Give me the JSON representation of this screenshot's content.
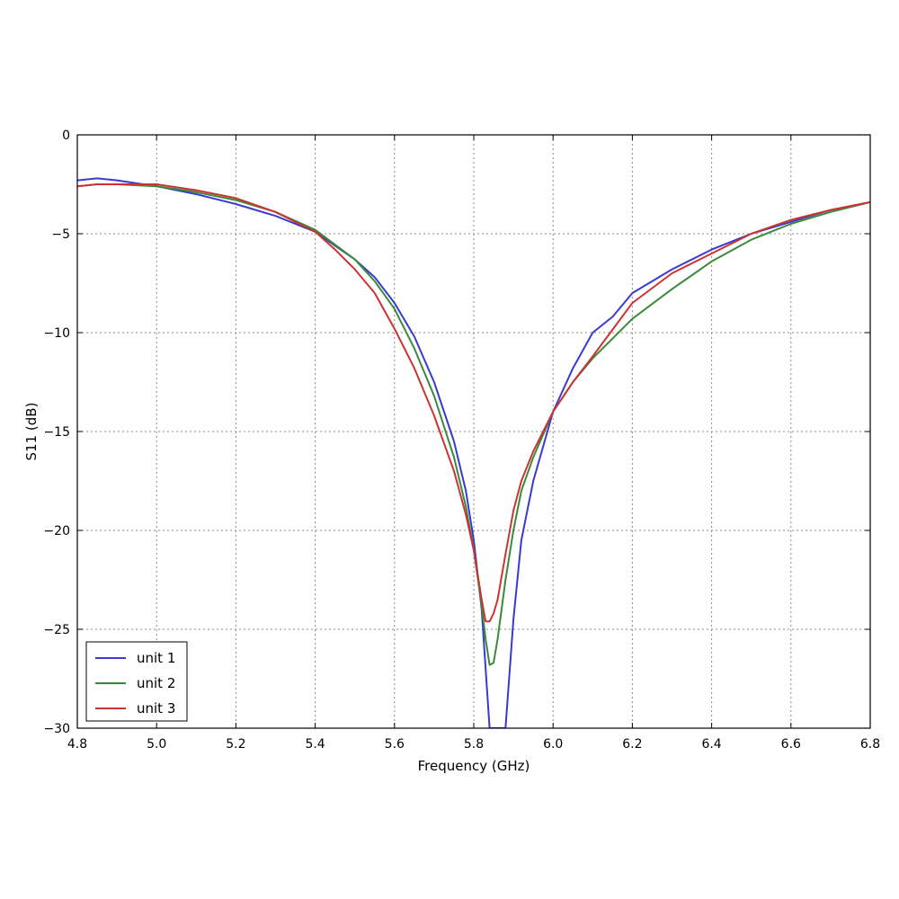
{
  "chart_data": {
    "type": "line",
    "title": "",
    "xlabel": "Frequency (GHz)",
    "ylabel": "S11 (dB)",
    "xlim": [
      4.8,
      6.8
    ],
    "ylim": [
      -30,
      0
    ],
    "xticks": [
      "4.8",
      "5.0",
      "5.2",
      "5.4",
      "5.6",
      "5.8",
      "6.0",
      "6.2",
      "6.4",
      "6.6",
      "6.8"
    ],
    "yticks": [
      "0",
      "−5",
      "−10",
      "−15",
      "−20",
      "−25",
      "−30"
    ],
    "grid": true,
    "legend_position": "lower-left",
    "series": [
      {
        "name": "unit 1",
        "color": "#3a3ad0",
        "x": [
          4.8,
          4.85,
          4.9,
          5.0,
          5.1,
          5.2,
          5.3,
          5.4,
          5.5,
          5.55,
          5.6,
          5.65,
          5.7,
          5.75,
          5.78,
          5.8,
          5.82,
          5.83,
          5.84,
          5.85,
          5.86,
          5.87,
          5.88,
          5.9,
          5.92,
          5.95,
          6.0,
          6.05,
          6.1,
          6.15,
          6.2,
          6.3,
          6.4,
          6.5,
          6.6,
          6.7,
          6.8
        ],
        "y": [
          -2.3,
          -2.2,
          -2.3,
          -2.6,
          -3.0,
          -3.5,
          -4.1,
          -4.9,
          -6.3,
          -7.2,
          -8.5,
          -10.2,
          -12.5,
          -15.5,
          -18.0,
          -20.5,
          -24.0,
          -27.0,
          -30.0,
          -30.0,
          -30.0,
          -30.0,
          -30.0,
          -24.5,
          -20.5,
          -17.5,
          -14.0,
          -11.8,
          -10.0,
          -9.2,
          -8.0,
          -6.8,
          -5.8,
          -5.0,
          -4.4,
          -3.8,
          -3.4
        ]
      },
      {
        "name": "unit 2",
        "color": "#3a8a3a",
        "x": [
          4.8,
          4.85,
          4.9,
          5.0,
          5.1,
          5.2,
          5.3,
          5.4,
          5.5,
          5.55,
          5.6,
          5.65,
          5.7,
          5.75,
          5.78,
          5.8,
          5.82,
          5.83,
          5.84,
          5.85,
          5.86,
          5.88,
          5.9,
          5.92,
          5.95,
          6.0,
          6.05,
          6.1,
          6.2,
          6.3,
          6.4,
          6.5,
          6.6,
          6.7,
          6.8
        ],
        "y": [
          -2.6,
          -2.5,
          -2.5,
          -2.6,
          -2.9,
          -3.3,
          -3.9,
          -4.8,
          -6.3,
          -7.4,
          -8.8,
          -10.8,
          -13.2,
          -16.3,
          -18.8,
          -21.0,
          -23.8,
          -25.5,
          -26.8,
          -26.7,
          -25.5,
          -22.5,
          -20.0,
          -18.0,
          -16.3,
          -14.0,
          -12.5,
          -11.3,
          -9.3,
          -7.8,
          -6.4,
          -5.3,
          -4.5,
          -3.9,
          -3.4
        ]
      },
      {
        "name": "unit 3",
        "color": "#cc3333",
        "x": [
          4.8,
          4.85,
          4.9,
          5.0,
          5.1,
          5.2,
          5.3,
          5.4,
          5.45,
          5.5,
          5.55,
          5.6,
          5.65,
          5.7,
          5.75,
          5.78,
          5.8,
          5.82,
          5.83,
          5.84,
          5.85,
          5.86,
          5.88,
          5.9,
          5.92,
          5.95,
          6.0,
          6.05,
          6.1,
          6.2,
          6.3,
          6.4,
          6.5,
          6.6,
          6.7,
          6.8
        ],
        "y": [
          -2.6,
          -2.5,
          -2.5,
          -2.5,
          -2.8,
          -3.2,
          -3.9,
          -4.9,
          -5.8,
          -6.8,
          -8.0,
          -9.8,
          -11.8,
          -14.2,
          -17.0,
          -19.2,
          -21.0,
          -23.5,
          -24.6,
          -24.6,
          -24.2,
          -23.5,
          -21.2,
          -19.0,
          -17.5,
          -16.0,
          -14.0,
          -12.5,
          -11.2,
          -8.5,
          -7.0,
          -6.0,
          -5.0,
          -4.3,
          -3.8,
          -3.4
        ]
      }
    ]
  }
}
